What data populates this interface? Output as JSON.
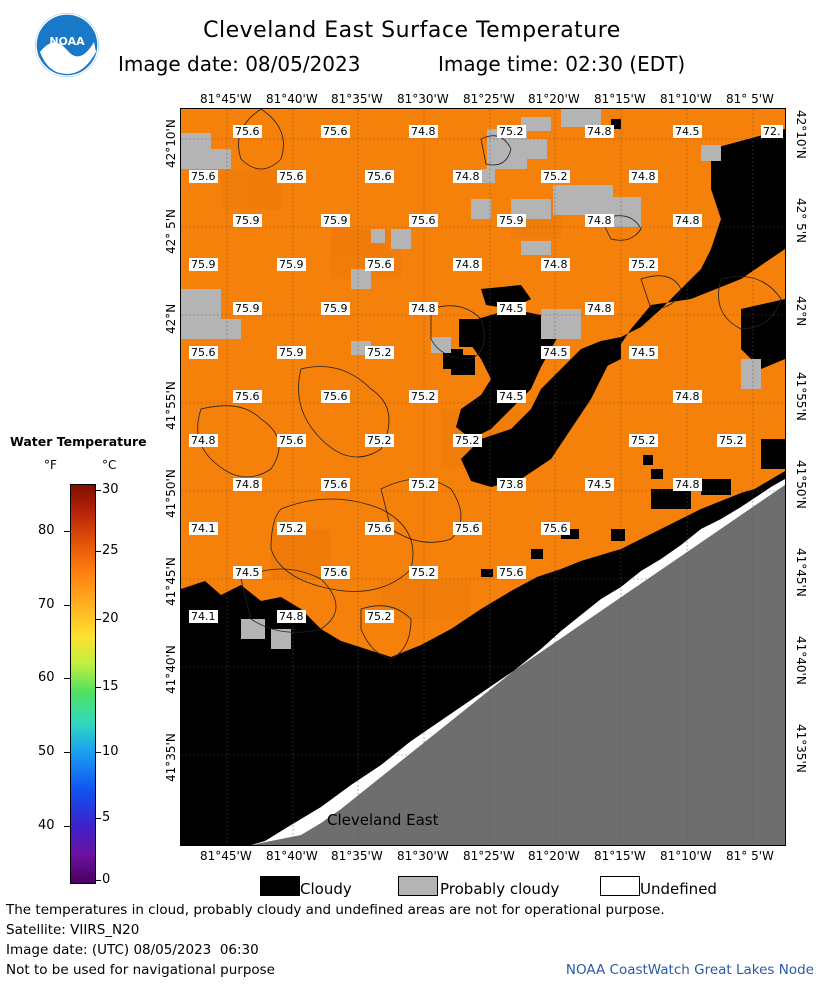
{
  "header": {
    "title": "Cleveland East Surface Temperature",
    "date_text": "Image date: 08/05/2023",
    "time_text": "Image time: 02:30 (EDT)",
    "logo_text": "NOAA"
  },
  "map": {
    "lon_ticks": [
      "81°45'W",
      "81°40'W",
      "81°35'W",
      "81°30'W",
      "81°25'W",
      "81°20'W",
      "81°15'W",
      "81°10'W",
      "81° 5'W"
    ],
    "lat_ticks": [
      "42°10'N",
      "42° 5'N",
      "42°N",
      "41°55'N",
      "41°50'N",
      "41°45'N",
      "41°40'N",
      "41°35'N"
    ],
    "lake_name": "Cleveland East",
    "temperature_rows": [
      [
        "75.6",
        "75.6",
        "74.8",
        "75.2",
        "74.8",
        "74.5",
        "72."
      ],
      [
        "75.6",
        "75.6",
        "75.6",
        "74.8",
        "75.2",
        "74.8"
      ],
      [
        "75.9",
        "75.9",
        "75.6",
        "75.9",
        "74.8",
        "74.8"
      ],
      [
        "75.9",
        "75.9",
        "75.6",
        "74.8",
        "74.8",
        "75.2"
      ],
      [
        "75.9",
        "75.9",
        "74.8",
        "74.5",
        "74.8"
      ],
      [
        "75.6",
        "75.9",
        "75.2",
        "74.5",
        "74.5"
      ],
      [
        "75.6",
        "75.6",
        "75.2",
        "74.5",
        "74.8"
      ],
      [
        "74.8",
        "75.6",
        "75.2",
        "75.2",
        "75.2",
        "75.2"
      ],
      [
        "74.8",
        "75.6",
        "75.2",
        "73.8",
        "74.5",
        "74.8"
      ],
      [
        "74.1",
        "75.2",
        "75.6",
        "75.6",
        "75.6"
      ],
      [
        "74.5",
        "75.6",
        "75.2",
        "75.6"
      ],
      [
        "74.1",
        "74.8",
        "75.2"
      ]
    ],
    "colors": {
      "water": "#f5800a",
      "cloud": "#000000",
      "probably_cloudy": "#b4b4b4",
      "land": "#6e6e6e",
      "undefined": "#ffffff"
    }
  },
  "legend": {
    "title": "Water Temperature",
    "unit_f": "°F",
    "unit_c": "°C",
    "f_ticks": [
      "80",
      "70",
      "60",
      "50",
      "40"
    ],
    "c_ticks": [
      "30",
      "25",
      "20",
      "15",
      "10",
      "5",
      "0"
    ],
    "categories": [
      {
        "label": "Cloudy",
        "color": "#000000"
      },
      {
        "label": "Probably cloudy",
        "color": "#b4b4b4"
      },
      {
        "label": "Undefined",
        "color": "#ffffff"
      }
    ]
  },
  "footer": {
    "disclaimer": "The temperatures in cloud, probably cloudy and undefined areas are not for operational purpose.",
    "satellite": "Satellite: VIIRS_N20",
    "utc_date": "Image date: (UTC) 08/05/2023  06:30",
    "nav_warning": "Not to be used for navigational purpose",
    "credit": "NOAA CoastWatch Great Lakes Node"
  }
}
